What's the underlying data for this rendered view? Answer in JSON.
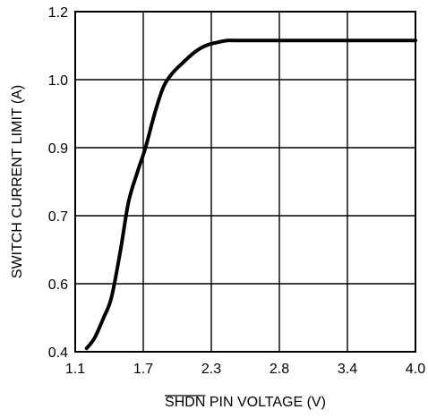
{
  "chart_data": {
    "type": "line",
    "title": "",
    "xlabel_overbar": "SHDN",
    "xlabel_rest": " PIN VOLTAGE (V)",
    "ylabel": "SWITCH CURRENT LIMIT (A)",
    "x_ticks": [
      "1.1",
      "1.7",
      "2.3",
      "2.8",
      "3.4",
      "4.0"
    ],
    "y_ticks": [
      "0.4",
      "0.6",
      "0.7",
      "0.9",
      "1.0",
      "1.2"
    ],
    "grid": true,
    "series": [
      {
        "x": [
          1.2,
          1.27,
          1.35,
          1.42,
          1.5,
          1.57,
          1.65,
          1.72,
          1.8,
          1.88,
          1.96,
          2.05,
          2.15,
          2.25,
          2.35,
          2.42,
          2.48,
          2.55,
          2.7,
          3.0,
          3.5,
          4.0
        ],
        "y": [
          0.41,
          0.44,
          0.5,
          0.56,
          0.65,
          0.74,
          0.83,
          0.9,
          0.95,
          0.99,
          1.02,
          1.05,
          1.08,
          1.1,
          1.11,
          1.115,
          1.115,
          1.115,
          1.115,
          1.115,
          1.115,
          1.115
        ]
      }
    ]
  }
}
